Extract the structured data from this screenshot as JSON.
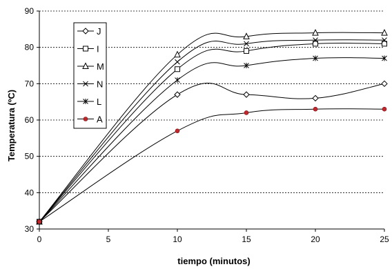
{
  "chart_data": {
    "type": "line",
    "title": "",
    "xlabel": "tiempo (minutos)",
    "ylabel": "Temperatura (ºC)",
    "xlim": [
      0,
      25
    ],
    "ylim": [
      30,
      90
    ],
    "xticks": [
      0,
      5,
      10,
      15,
      20,
      25
    ],
    "yticks": [
      30,
      40,
      50,
      60,
      70,
      80,
      90
    ],
    "grid": "horizontal dashed",
    "legend_position": "upper-left, inside plot area",
    "x": [
      0,
      10,
      15,
      20,
      25
    ],
    "series": [
      {
        "name": "J",
        "marker": "diamond",
        "color": "#000000",
        "values": [
          32,
          67,
          67,
          66,
          70
        ]
      },
      {
        "name": "I",
        "marker": "square",
        "color": "#000000",
        "values": [
          32,
          74,
          79,
          81,
          81
        ]
      },
      {
        "name": "M",
        "marker": "triangle",
        "color": "#000000",
        "values": [
          32,
          78,
          83,
          84,
          84
        ]
      },
      {
        "name": "N",
        "marker": "x",
        "color": "#000000",
        "values": [
          32,
          76,
          81,
          82,
          82
        ]
      },
      {
        "name": "L",
        "marker": "star",
        "color": "#000000",
        "values": [
          32,
          71,
          75,
          77,
          77
        ]
      },
      {
        "name": "A",
        "marker": "circle",
        "color": "#c0282d",
        "values": [
          32,
          57,
          62,
          63,
          63
        ]
      }
    ]
  }
}
